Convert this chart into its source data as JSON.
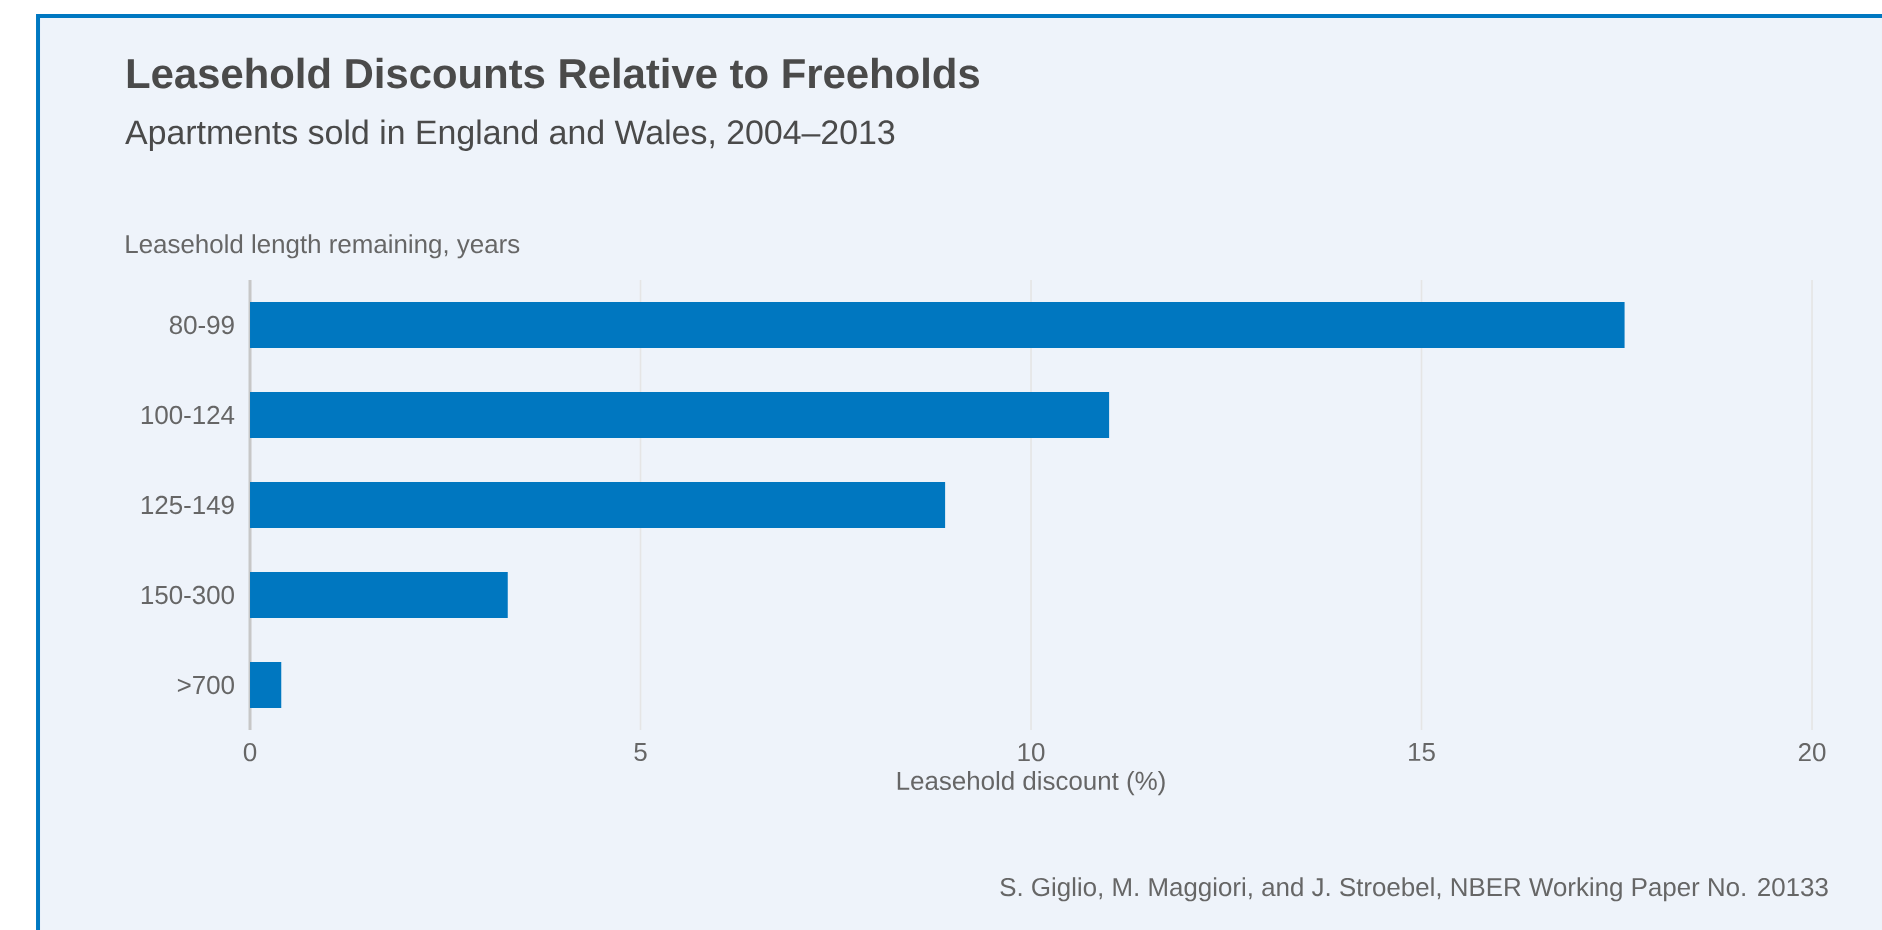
{
  "chart_data": {
    "type": "bar",
    "orientation": "horizontal",
    "title": "Leasehold Discounts Relative to Freeholds",
    "subtitle": "Apartments sold in England and Wales, 2004–2013",
    "ylabel": "Leasehold length remaining, years",
    "xlabel": "Leasehold discount (%)",
    "categories": [
      "80-99",
      "100-124",
      "125-149",
      "150-300",
      ">700"
    ],
    "values": [
      17.6,
      11.0,
      8.9,
      3.3,
      0.4
    ],
    "color": "#0077c0",
    "xlim": [
      0,
      20
    ],
    "xticks": [
      0,
      5,
      10,
      15,
      20
    ],
    "grid": "x",
    "annotations": [
      "S. Giglio, M. Maggiori, and J. Stroebel, NBER Working Paper No. 20133"
    ]
  }
}
